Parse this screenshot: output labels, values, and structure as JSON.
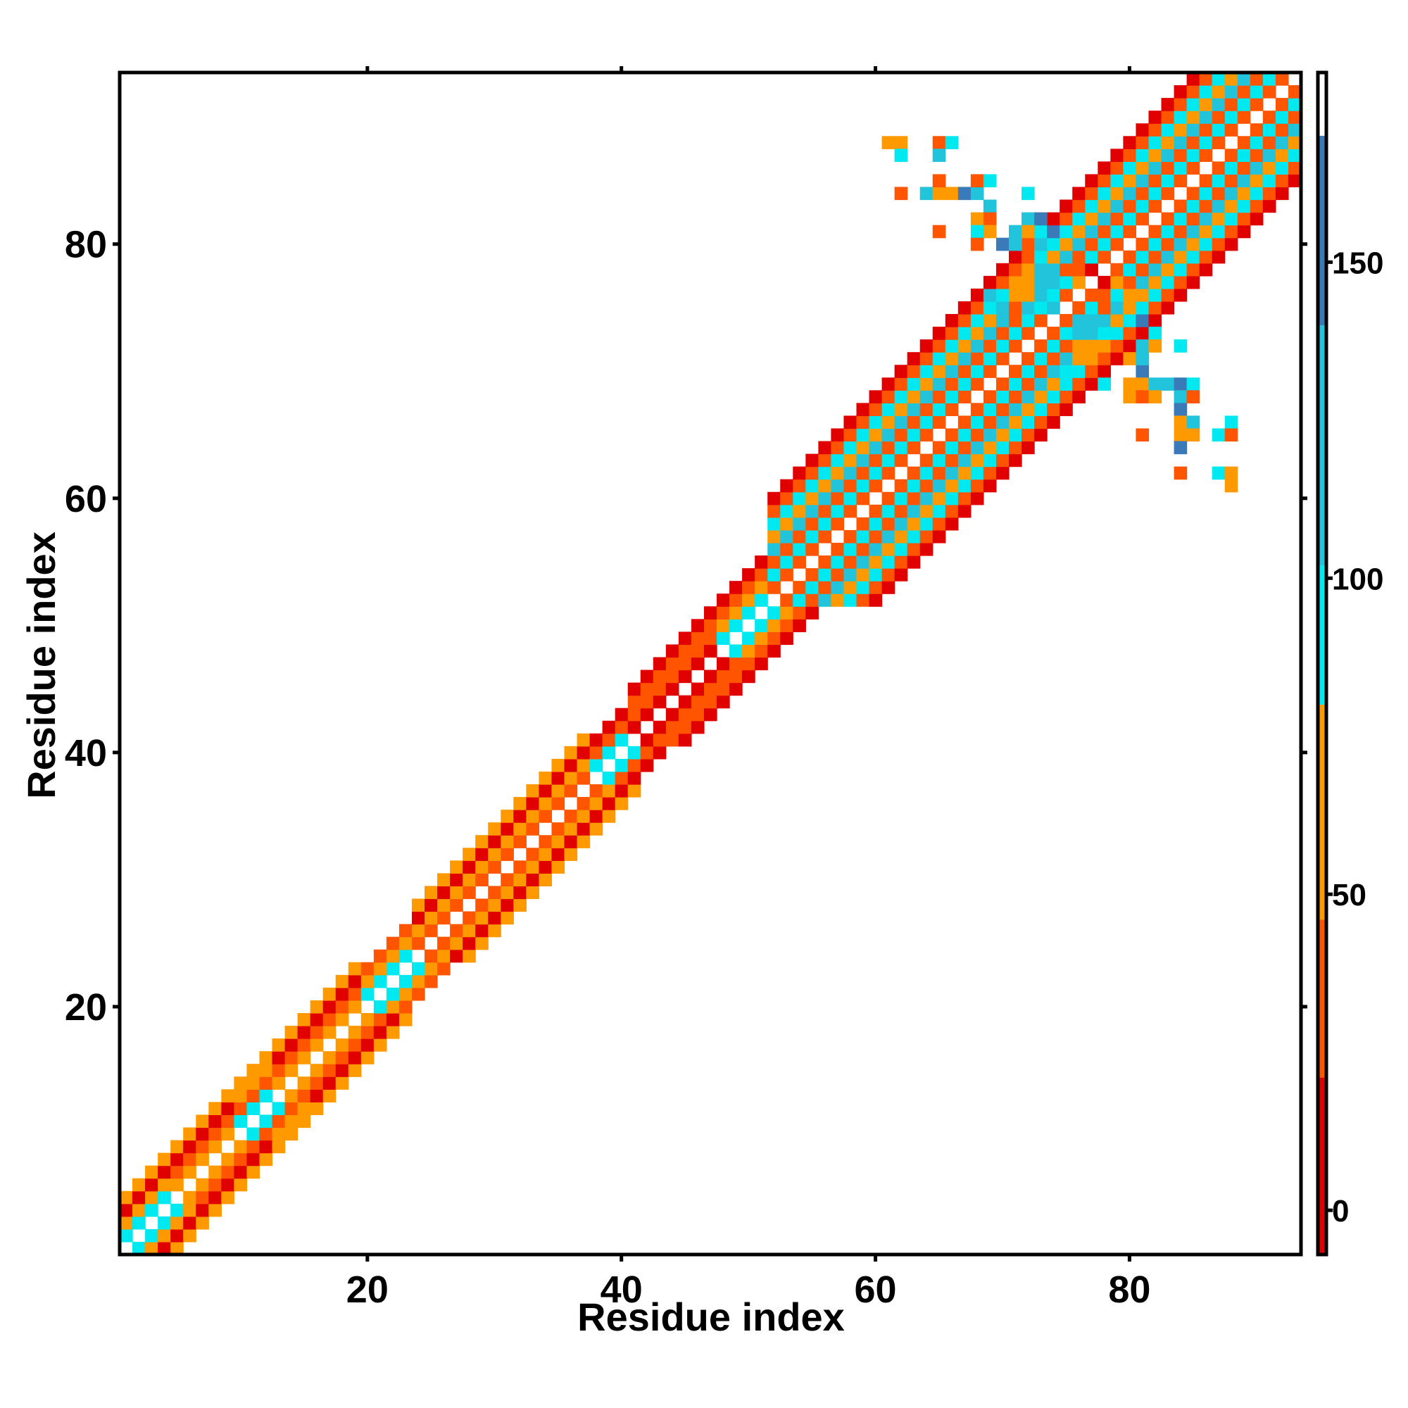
{
  "chart_data": {
    "type": "heatmap",
    "title": "",
    "xlabel": "Residue index",
    "ylabel": "Residue index",
    "xlim": [
      0.5,
      93.5
    ],
    "ylim": [
      0.5,
      93.5
    ],
    "xticks": [
      20,
      40,
      60,
      80
    ],
    "yticks": [
      20,
      40,
      60,
      80
    ],
    "colorbar": {
      "ticks": [
        0,
        50,
        100,
        150
      ],
      "range": [
        -7,
        180
      ],
      "bands": [
        {
          "from": -7,
          "to": 21,
          "color": "#e00000"
        },
        {
          "from": 21,
          "to": 46,
          "color": "#ff5500"
        },
        {
          "from": 46,
          "to": 80,
          "color": "#ff9900"
        },
        {
          "from": 80,
          "to": 102,
          "color": "#00e8f0"
        },
        {
          "from": 102,
          "to": 140,
          "color": "#22c4dc"
        },
        {
          "from": 140,
          "to": 170,
          "color": "#3a7ab8"
        },
        {
          "from": 170,
          "to": 180,
          "color": "#ffffff"
        }
      ]
    },
    "colors": {
      "red": "#e00000",
      "orange_red": "#ff5500",
      "orange": "#ff9900",
      "cyan": "#00e8f0",
      "light_blue": "#22c4dc",
      "steel_blue": "#3a7ab8"
    },
    "segments": [
      {
        "from": 1,
        "to": 4,
        "pattern": [
          "cyan",
          "orange",
          "red",
          "orange"
        ]
      },
      {
        "from": 5,
        "to": 19,
        "pattern": [
          "orange",
          "orange_red",
          "red",
          "orange"
        ]
      },
      {
        "from": 10,
        "to": 12,
        "pattern": [
          "cyan",
          "orange_red",
          "orange"
        ]
      },
      {
        "from": 20,
        "to": 23,
        "pattern": [
          "cyan",
          "orange",
          "orange_red"
        ]
      },
      {
        "from": 24,
        "to": 37,
        "pattern": [
          "orange_red",
          "orange",
          "red",
          "orange"
        ]
      },
      {
        "from": 38,
        "to": 40,
        "pattern": [
          "cyan",
          "orange_red",
          "red"
        ]
      },
      {
        "from": 41,
        "to": 47,
        "pattern": [
          "red",
          "orange_red",
          "orange_red",
          "red"
        ]
      },
      {
        "from": 48,
        "to": 51,
        "pattern": [
          "cyan",
          "orange",
          "orange_red",
          "red"
        ]
      },
      {
        "from": 52,
        "to": 93,
        "pattern": [
          "orange_red",
          "cyan",
          "orange_red",
          "light_blue",
          "orange",
          "cyan",
          "orange_red",
          "red"
        ]
      }
    ],
    "off_diagonal_cells": [
      {
        "x": 61,
        "y": 88,
        "color": "orange"
      },
      {
        "x": 62,
        "y": 88,
        "color": "orange"
      },
      {
        "x": 62,
        "y": 87,
        "color": "cyan"
      },
      {
        "x": 65,
        "y": 88,
        "color": "orange_red"
      },
      {
        "x": 66,
        "y": 88,
        "color": "cyan"
      },
      {
        "x": 65,
        "y": 87,
        "color": "light_blue"
      },
      {
        "x": 62,
        "y": 84,
        "color": "orange_red"
      },
      {
        "x": 64,
        "y": 84,
        "color": "light_blue"
      },
      {
        "x": 65,
        "y": 84,
        "color": "orange"
      },
      {
        "x": 66,
        "y": 84,
        "color": "orange"
      },
      {
        "x": 67,
        "y": 84,
        "color": "steel_blue"
      },
      {
        "x": 68,
        "y": 84,
        "color": "light_blue"
      },
      {
        "x": 65,
        "y": 85,
        "color": "orange_red"
      },
      {
        "x": 68,
        "y": 85,
        "color": "orange_red"
      },
      {
        "x": 69,
        "y": 85,
        "color": "cyan"
      },
      {
        "x": 72,
        "y": 84,
        "color": "cyan"
      },
      {
        "x": 69,
        "y": 83,
        "color": "light_blue"
      },
      {
        "x": 68,
        "y": 82,
        "color": "orange"
      },
      {
        "x": 69,
        "y": 82,
        "color": "orange_red"
      },
      {
        "x": 72,
        "y": 82,
        "color": "light_blue"
      },
      {
        "x": 73,
        "y": 82,
        "color": "steel_blue"
      },
      {
        "x": 65,
        "y": 81,
        "color": "orange_red"
      },
      {
        "x": 68,
        "y": 81,
        "color": "cyan"
      },
      {
        "x": 69,
        "y": 81,
        "color": "orange"
      },
      {
        "x": 71,
        "y": 81,
        "color": "light_blue"
      },
      {
        "x": 72,
        "y": 81,
        "color": "orange"
      },
      {
        "x": 73,
        "y": 81,
        "color": "cyan"
      },
      {
        "x": 74,
        "y": 81,
        "color": "steel_blue"
      },
      {
        "x": 68,
        "y": 80,
        "color": "orange_red"
      },
      {
        "x": 70,
        "y": 80,
        "color": "steel_blue"
      },
      {
        "x": 71,
        "y": 80,
        "color": "light_blue"
      },
      {
        "x": 72,
        "y": 80,
        "color": "orange_red"
      },
      {
        "x": 73,
        "y": 80,
        "color": "light_blue"
      },
      {
        "x": 72,
        "y": 78,
        "color": "orange"
      },
      {
        "x": 73,
        "y": 78,
        "color": "light_blue"
      },
      {
        "x": 71,
        "y": 77,
        "color": "orange"
      },
      {
        "x": 72,
        "y": 77,
        "color": "orange"
      },
      {
        "x": 73,
        "y": 77,
        "color": "light_blue"
      },
      {
        "x": 74,
        "y": 77,
        "color": "light_blue"
      },
      {
        "x": 69,
        "y": 76,
        "color": "light_blue"
      },
      {
        "x": 71,
        "y": 76,
        "color": "orange"
      },
      {
        "x": 72,
        "y": 76,
        "color": "orange"
      },
      {
        "x": 73,
        "y": 76,
        "color": "light_blue"
      },
      {
        "x": 74,
        "y": 76,
        "color": "cyan"
      },
      {
        "x": 70,
        "y": 75,
        "color": "light_blue"
      },
      {
        "x": 71,
        "y": 75,
        "color": "orange_red"
      },
      {
        "x": 72,
        "y": 75,
        "color": "light_blue"
      },
      {
        "x": 73,
        "y": 75,
        "color": "cyan"
      },
      {
        "x": 74,
        "y": 75,
        "color": "light_blue"
      },
      {
        "x": 76,
        "y": 78,
        "color": "orange_red"
      },
      {
        "x": 77,
        "y": 78,
        "color": "red"
      },
      {
        "x": 78,
        "y": 78,
        "color": "orange_red"
      },
      {
        "x": 76,
        "y": 77,
        "color": "orange"
      },
      {
        "x": 77,
        "y": 77,
        "color": "orange_red"
      },
      {
        "x": 78,
        "y": 77,
        "color": "red"
      },
      {
        "x": 79,
        "y": 77,
        "color": "orange"
      },
      {
        "x": 75,
        "y": 76,
        "color": "orange_red"
      },
      {
        "x": 77,
        "y": 76,
        "color": "orange_red"
      },
      {
        "x": 78,
        "y": 76,
        "color": "orange_red"
      },
      {
        "x": 79,
        "y": 76,
        "color": "cyan"
      },
      {
        "x": 80,
        "y": 76,
        "color": "orange"
      },
      {
        "x": 76,
        "y": 74,
        "color": "light_blue"
      },
      {
        "x": 77,
        "y": 74,
        "color": "light_blue"
      },
      {
        "x": 76,
        "y": 73,
        "color": "light_blue"
      },
      {
        "x": 77,
        "y": 73,
        "color": "light_blue"
      },
      {
        "x": 78,
        "y": 73,
        "color": "cyan"
      },
      {
        "x": 76,
        "y": 72,
        "color": "orange"
      },
      {
        "x": 77,
        "y": 72,
        "color": "orange"
      },
      {
        "x": 78,
        "y": 72,
        "color": "orange"
      },
      {
        "x": 76,
        "y": 71,
        "color": "orange"
      },
      {
        "x": 77,
        "y": 71,
        "color": "orange"
      },
      {
        "x": 75,
        "y": 70,
        "color": "cyan"
      },
      {
        "x": 76,
        "y": 70,
        "color": "cyan"
      },
      {
        "x": 78,
        "y": 69,
        "color": "cyan"
      },
      {
        "x": 81,
        "y": 74,
        "color": "steel_blue"
      },
      {
        "x": 82,
        "y": 73,
        "color": "cyan"
      },
      {
        "x": 80,
        "y": 73,
        "color": "orange_red"
      },
      {
        "x": 81,
        "y": 72,
        "color": "light_blue"
      },
      {
        "x": 82,
        "y": 72,
        "color": "orange"
      },
      {
        "x": 84,
        "y": 72,
        "color": "cyan"
      },
      {
        "x": 80,
        "y": 71,
        "color": "orange"
      },
      {
        "x": 81,
        "y": 70,
        "color": "steel_blue"
      },
      {
        "x": 81,
        "y": 71,
        "color": "light_blue"
      },
      {
        "x": 80,
        "y": 69,
        "color": "orange"
      },
      {
        "x": 81,
        "y": 69,
        "color": "orange"
      },
      {
        "x": 82,
        "y": 69,
        "color": "light_blue"
      },
      {
        "x": 83,
        "y": 69,
        "color": "light_blue"
      },
      {
        "x": 84,
        "y": 69,
        "color": "steel_blue"
      },
      {
        "x": 85,
        "y": 69,
        "color": "cyan"
      },
      {
        "x": 80,
        "y": 68,
        "color": "orange"
      },
      {
        "x": 81,
        "y": 68,
        "color": "orange_red"
      },
      {
        "x": 82,
        "y": 68,
        "color": "orange"
      },
      {
        "x": 84,
        "y": 68,
        "color": "light_blue"
      },
      {
        "x": 85,
        "y": 68,
        "color": "orange_red"
      },
      {
        "x": 84,
        "y": 67,
        "color": "steel_blue"
      },
      {
        "x": 84,
        "y": 66,
        "color": "orange"
      },
      {
        "x": 85,
        "y": 66,
        "color": "light_blue"
      },
      {
        "x": 88,
        "y": 66,
        "color": "cyan"
      },
      {
        "x": 81,
        "y": 65,
        "color": "orange_red"
      },
      {
        "x": 84,
        "y": 65,
        "color": "orange"
      },
      {
        "x": 85,
        "y": 65,
        "color": "orange"
      },
      {
        "x": 87,
        "y": 65,
        "color": "cyan"
      },
      {
        "x": 88,
        "y": 65,
        "color": "orange_red"
      },
      {
        "x": 84,
        "y": 64,
        "color": "steel_blue"
      },
      {
        "x": 84,
        "y": 62,
        "color": "orange_red"
      },
      {
        "x": 87,
        "y": 62,
        "color": "cyan"
      },
      {
        "x": 88,
        "y": 62,
        "color": "orange"
      },
      {
        "x": 88,
        "y": 61,
        "color": "orange"
      }
    ]
  }
}
